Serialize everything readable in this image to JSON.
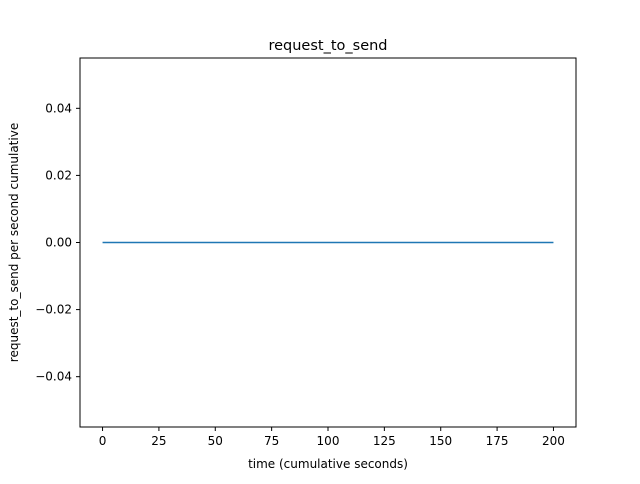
{
  "chart_data": {
    "type": "line",
    "title": "request_to_send",
    "xlabel": "time (cumulative seconds)",
    "ylabel": "request_to_send per second cumulative",
    "xlim": [
      -10,
      210
    ],
    "ylim": [
      -0.055,
      0.055
    ],
    "x_ticks": [
      0,
      25,
      50,
      75,
      100,
      125,
      150,
      175,
      200
    ],
    "x_tick_labels": [
      "0",
      "25",
      "50",
      "75",
      "100",
      "125",
      "150",
      "175",
      "200"
    ],
    "y_ticks": [
      -0.04,
      -0.02,
      0.0,
      0.02,
      0.04
    ],
    "y_tick_labels": [
      "−0.04",
      "−0.02",
      "0.00",
      "0.02",
      "0.04"
    ],
    "grid": false,
    "series": [
      {
        "color": "#1f77b4",
        "x": [
          0,
          200
        ],
        "y": [
          0,
          0
        ]
      }
    ]
  }
}
